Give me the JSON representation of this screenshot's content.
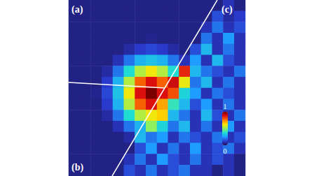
{
  "chart_data": {
    "type": "heatmap",
    "annotations": [
      "(a)",
      "(b)",
      "(c)"
    ],
    "tick_labels": false,
    "cells": [
      [
        0.05,
        0.05,
        0.05,
        0.05,
        0.05,
        0.05,
        0.05,
        0.05,
        0.05,
        0.05,
        0.05,
        0.05,
        0.05,
        0.05,
        0.1,
        0.05
      ],
      [
        0.05,
        0.05,
        0.05,
        0.05,
        0.05,
        0.05,
        0.05,
        0.05,
        0.05,
        0.05,
        0.05,
        0.05,
        0.05,
        0.15,
        0.08,
        0.12
      ],
      [
        0.05,
        0.05,
        0.05,
        0.05,
        0.05,
        0.05,
        0.05,
        0.05,
        0.05,
        0.05,
        0.05,
        0.05,
        0.1,
        0.2,
        0.1,
        0.15
      ],
      [
        0.05,
        0.05,
        0.05,
        0.05,
        0.05,
        0.05,
        0.05,
        0.06,
        0.05,
        0.05,
        0.05,
        0.05,
        0.2,
        0.1,
        0.25,
        0.1
      ],
      [
        0.05,
        0.05,
        0.05,
        0.05,
        0.05,
        0.08,
        0.12,
        0.14,
        0.12,
        0.08,
        0.05,
        0.15,
        0.3,
        0.1,
        0.2,
        0.1
      ],
      [
        0.05,
        0.05,
        0.05,
        0.05,
        0.1,
        0.2,
        0.29,
        0.32,
        0.29,
        0.2,
        0.1,
        0.25,
        0.1,
        0.3,
        0.15,
        0.1
      ],
      [
        0.05,
        0.05,
        0.05,
        0.08,
        0.2,
        0.37,
        0.54,
        0.61,
        0.54,
        0.37,
        0.85,
        0.3,
        0.2,
        0.15,
        0.1,
        0.2
      ],
      [
        0.05,
        0.05,
        0.05,
        0.12,
        0.29,
        0.54,
        0.78,
        0.88,
        0.78,
        0.9,
        0.6,
        0.2,
        0.3,
        0.1,
        0.2,
        0.1
      ],
      [
        0.05,
        0.05,
        0.06,
        0.14,
        0.32,
        0.61,
        0.88,
        1.0,
        0.88,
        0.8,
        0.35,
        0.25,
        0.1,
        0.2,
        0.15,
        0.1
      ],
      [
        0.05,
        0.05,
        0.05,
        0.12,
        0.29,
        0.54,
        0.78,
        0.88,
        0.7,
        0.4,
        0.3,
        0.15,
        0.25,
        0.1,
        0.2,
        0.1
      ],
      [
        0.05,
        0.05,
        0.05,
        0.08,
        0.2,
        0.37,
        0.54,
        0.61,
        0.65,
        0.3,
        0.2,
        0.1,
        0.3,
        0.15,
        0.1,
        0.2
      ],
      [
        0.05,
        0.05,
        0.05,
        0.05,
        0.1,
        0.2,
        0.29,
        0.5,
        0.35,
        0.2,
        0.3,
        0.1,
        0.2,
        0.1,
        0.25,
        0.1
      ],
      [
        0.05,
        0.05,
        0.05,
        0.05,
        0.05,
        0.08,
        0.3,
        0.2,
        0.25,
        0.1,
        0.2,
        0.15,
        0.1,
        0.2,
        0.1,
        0.15
      ],
      [
        0.05,
        0.05,
        0.05,
        0.05,
        0.05,
        0.05,
        0.15,
        0.25,
        0.1,
        0.2,
        0.1,
        0.25,
        0.1,
        0.15,
        0.2,
        0.1
      ],
      [
        0.05,
        0.05,
        0.05,
        0.05,
        0.05,
        0.1,
        0.2,
        0.1,
        0.25,
        0.15,
        0.1,
        0.2,
        0.1,
        0.15,
        0.1,
        0.05
      ],
      [
        0.05,
        0.05,
        0.05,
        0.05,
        0.05,
        0.15,
        0.1,
        0.2,
        0.1,
        0.15,
        0.2,
        0.1,
        0.1,
        0.05,
        0.1,
        0.05
      ]
    ],
    "colorbar": {
      "range": [
        0,
        1
      ],
      "ticks": [
        0,
        1
      ]
    }
  }
}
